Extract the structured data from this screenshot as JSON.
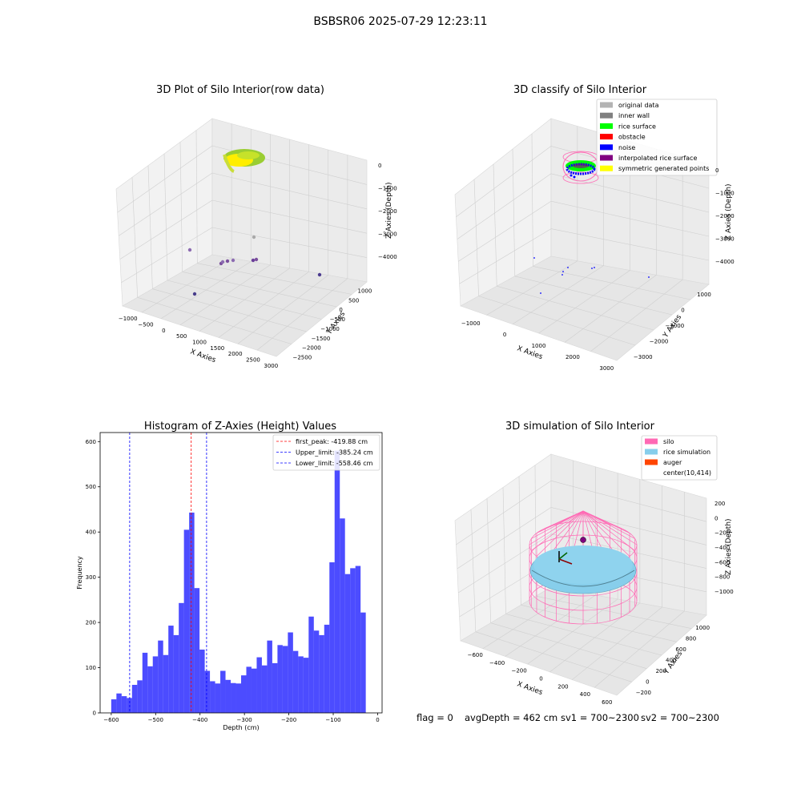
{
  "figure": {
    "suptitle": "BSBSR06 2025-07-29 12:23:11",
    "status": {
      "flag": "flag = 0",
      "avgDepth": "avgDepth = 462 cm",
      "sv1": "sv1 = 700~2300",
      "sv2": "sv2 = 700~2300"
    }
  },
  "chart_data": [
    {
      "type": "scatter",
      "projection": "3d",
      "title": "3D Plot of Silo Interior(row data)",
      "xlabel": "X Axies",
      "ylabel": "Y Axies",
      "zlabel": "Z Axies (Depth)",
      "x_ticks": [
        "−1000",
        "−500",
        "0",
        "500",
        "1000",
        "1500",
        "2000",
        "2500",
        "3000"
      ],
      "y_ticks": [
        "1000",
        "500",
        "0",
        "−500",
        "−1000",
        "−1500",
        "−2000",
        "−2500"
      ],
      "z_ticks": [
        "0",
        "−1000",
        "−2000",
        "−3000",
        "−4000"
      ],
      "grid": true,
      "description_points": {
        "dense_cluster": "yellow-green ring of points near Z ≈ 0 at X ≈ 0",
        "outliers": [
          {
            "x": 1500,
            "y": -500,
            "z": -4000
          },
          {
            "x": 900,
            "y": 0,
            "z": -4000
          },
          {
            "x": 1000,
            "y": 0,
            "z": -4000
          },
          {
            "x": 1100,
            "y": 0,
            "z": -4000
          },
          {
            "x": 2100,
            "y": 200,
            "z": -4000
          },
          {
            "x": 2200,
            "y": 200,
            "z": -4000
          },
          {
            "x": 2900,
            "y": 0,
            "z": -4000
          },
          {
            "x": 300,
            "y": -1500,
            "z": -4000
          },
          {
            "x": 2000,
            "y": 500,
            "z": -3000
          }
        ]
      }
    },
    {
      "type": "scatter",
      "projection": "3d",
      "title": "3D classify of Silo Interior",
      "xlabel": "X Axies",
      "ylabel": "Y Axies",
      "zlabel": "Z Axies (Depth)",
      "x_ticks": [
        "−1000",
        "0",
        "1000",
        "2000",
        "3000"
      ],
      "y_ticks": [
        "1000",
        "0",
        "−1000",
        "−2000",
        "−3000"
      ],
      "z_ticks": [
        "0",
        "−1000",
        "−2000",
        "−3000",
        "−4000"
      ],
      "grid": true,
      "legend_placement": "top-right",
      "legend": [
        {
          "name": "original data",
          "color": "#b3b3b3"
        },
        {
          "name": "inner wall",
          "color": "#808080"
        },
        {
          "name": "rice surface",
          "color": "#00ff00"
        },
        {
          "name": "obstacle",
          "color": "#ff0000"
        },
        {
          "name": "noise",
          "color": "#0000ff"
        },
        {
          "name": "interpolated rice surface",
          "color": "#800080"
        },
        {
          "name": "symmetric generated points",
          "color": "#ffff00"
        }
      ]
    },
    {
      "type": "bar",
      "title": "Histogram of Z-Axies (Height) Values",
      "xlabel": "Depth (cm)",
      "ylabel": "Frequency",
      "xlim": [
        -625,
        10
      ],
      "ylim": [
        0,
        620
      ],
      "x_ticks": [
        -600,
        -500,
        -400,
        -300,
        -200,
        -100,
        0
      ],
      "x_tick_labels": [
        "−600",
        "−500",
        "−400",
        "−300",
        "−200",
        "−100",
        "0"
      ],
      "y_ticks": [
        0,
        100,
        200,
        300,
        400,
        500,
        600
      ],
      "bin_start": -600,
      "bin_width": 11.7,
      "values": [
        30,
        43,
        37,
        33,
        62,
        72,
        133,
        103,
        125,
        160,
        128,
        193,
        172,
        243,
        405,
        443,
        276,
        140,
        93,
        70,
        65,
        93,
        73,
        66,
        65,
        83,
        102,
        98,
        123,
        105,
        160,
        110,
        150,
        148,
        178,
        137,
        125,
        122,
        213,
        182,
        172,
        195,
        333,
        580,
        430,
        307,
        320,
        325,
        222
      ],
      "color": "#0000ff",
      "vlines": [
        {
          "label": "first_peak: -419.88 cm",
          "x": -419.88,
          "color": "#ff0000"
        },
        {
          "label": "Upper_limit: -385.24 cm",
          "x": -385.24,
          "color": "#0000ff"
        },
        {
          "label": "Lower_limit: -558.46 cm",
          "x": -558.46,
          "color": "#0000ff"
        }
      ],
      "legend_placement": "top-right"
    },
    {
      "type": "surface",
      "projection": "3d",
      "title": "3D simulation of Silo Interior",
      "xlabel": "X Axies",
      "ylabel": "Y Axies",
      "zlabel": "Z Axies (Depth)",
      "x_ticks": [
        "−600",
        "−400",
        "−200",
        "0",
        "200",
        "400",
        "600"
      ],
      "y_ticks": [
        "1000",
        "800",
        "600",
        "400",
        "200",
        "0",
        "−200"
      ],
      "z_ticks": [
        "200",
        "0",
        "−200",
        "−400",
        "−600",
        "−800",
        "−1000"
      ],
      "grid": true,
      "legend_placement": "top-right",
      "legend": [
        {
          "name": "silo",
          "color": "#ff69b4"
        },
        {
          "name": "rice simulation",
          "color": "#87ceeb"
        },
        {
          "name": "auger",
          "color": "#ff4500"
        },
        {
          "name": "center(10,414)",
          "color": ""
        }
      ]
    }
  ]
}
